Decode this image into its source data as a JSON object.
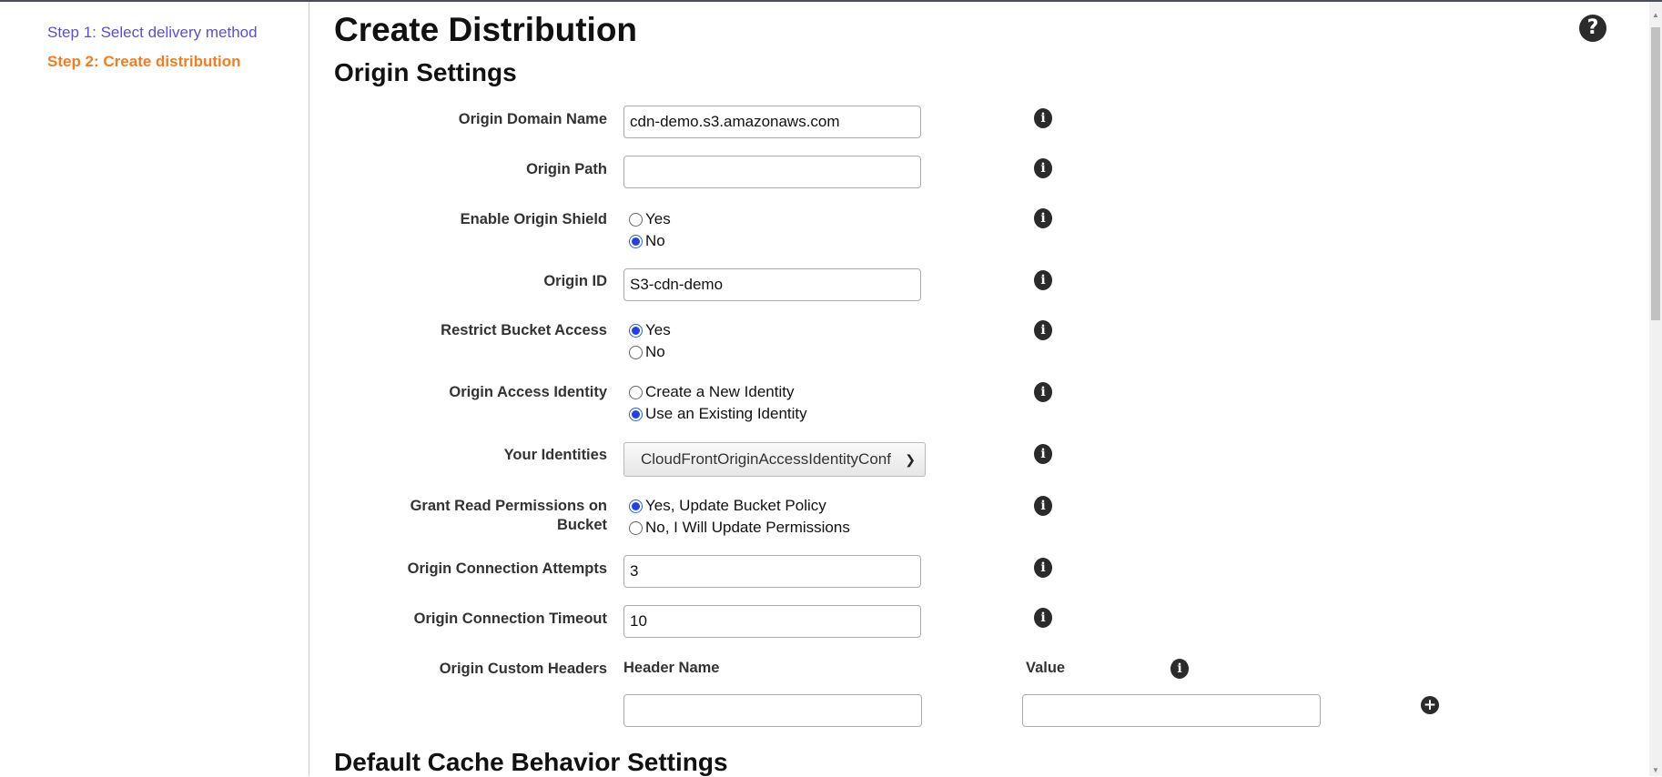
{
  "sidebar": {
    "steps": [
      {
        "label": "Step 1: Select delivery method"
      },
      {
        "label": "Step 2: Create distribution"
      }
    ]
  },
  "page": {
    "title": "Create Distribution",
    "section": "Origin Settings",
    "next_section": "Default Cache Behavior Settings",
    "help_icon": "question-circle-icon"
  },
  "form": {
    "origin_domain_name": {
      "label": "Origin Domain Name",
      "value": "cdn-demo.s3.amazonaws.com"
    },
    "origin_path": {
      "label": "Origin Path",
      "value": ""
    },
    "origin_shield": {
      "label": "Enable Origin Shield",
      "options": [
        "Yes",
        "No"
      ],
      "selected": "No"
    },
    "origin_id": {
      "label": "Origin ID",
      "value": "S3-cdn-demo"
    },
    "restrict_bucket_access": {
      "label": "Restrict Bucket Access",
      "options": [
        "Yes",
        "No"
      ],
      "selected": "Yes"
    },
    "origin_access_identity": {
      "label": "Origin Access Identity",
      "options": [
        "Create a New Identity",
        "Use an Existing Identity"
      ],
      "selected": "Use an Existing Identity"
    },
    "your_identities": {
      "label": "Your Identities",
      "value": "CloudFrontOriginAccessIdentityConf"
    },
    "grant_read": {
      "label_line1": "Grant Read Permissions on",
      "label_line2": "Bucket",
      "options": [
        "Yes, Update Bucket Policy",
        "No, I Will Update Permissions"
      ],
      "selected": "Yes, Update Bucket Policy"
    },
    "connection_attempts": {
      "label": "Origin Connection Attempts",
      "value": "3"
    },
    "connection_timeout": {
      "label": "Origin Connection Timeout",
      "value": "10"
    },
    "custom_headers": {
      "label": "Origin Custom Headers",
      "header_name_col": "Header Name",
      "value_col": "Value",
      "header_name": "",
      "value": ""
    }
  },
  "colors": {
    "step_link": "#5a4fcf",
    "step_active": "#f57c1f",
    "radio_selected": "#2340e6",
    "icon": "#2b2b2b"
  }
}
